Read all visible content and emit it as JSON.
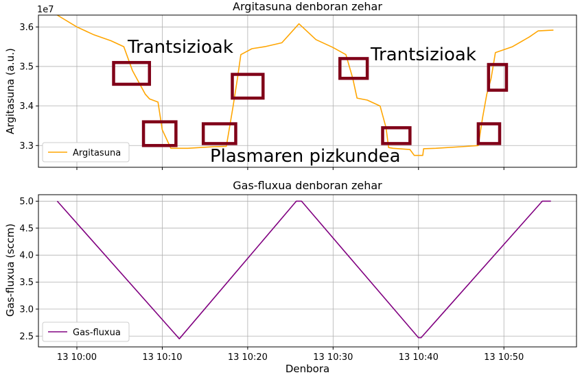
{
  "chart_data": [
    {
      "type": "line",
      "title": "Argitasuna denboran zehar",
      "ylabel": "Argitasuna (a.u.)",
      "xlabel": "",
      "offset_label": "1e7",
      "ylim": [
        3.245,
        3.63
      ],
      "yticks": [
        3.3,
        3.4,
        3.5,
        3.6
      ],
      "ytick_labels": [
        "3.3",
        "3.4",
        "3.5",
        "3.6"
      ],
      "grid": true,
      "legend": "lower-left",
      "series": [
        {
          "name": "Argitasuna",
          "color": "#FFA500",
          "x": [
            -2.3,
            0,
            2,
            4,
            5.5,
            6.5,
            8,
            8.5,
            9.5,
            10,
            11,
            13,
            16,
            17.5,
            18.3,
            18.8,
            19.2,
            20.5,
            22,
            24,
            26,
            28,
            30,
            31.5,
            32.3,
            32.8,
            34,
            35.5,
            36.2,
            36.5,
            37,
            39,
            39.5,
            40.5,
            40.6,
            42,
            45,
            47,
            47.5,
            48,
            48.5,
            49,
            51,
            53,
            54,
            55.8
          ],
          "y": [
            3.63,
            3.6,
            3.58,
            3.565,
            3.55,
            3.49,
            3.43,
            3.418,
            3.41,
            3.34,
            3.293,
            3.293,
            3.297,
            3.298,
            3.4,
            3.47,
            3.53,
            3.545,
            3.55,
            3.56,
            3.608,
            3.568,
            3.548,
            3.53,
            3.47,
            3.42,
            3.415,
            3.4,
            3.345,
            3.295,
            3.293,
            3.29,
            3.275,
            3.275,
            3.292,
            3.293,
            3.297,
            3.3,
            3.37,
            3.43,
            3.47,
            3.535,
            3.55,
            3.575,
            3.59,
            3.592
          ]
        }
      ],
      "annotations": [
        "Trantsizioak",
        "Trantsizioak",
        "Plasmaren pizkundea"
      ],
      "highlight_boxes_color": "#800018"
    },
    {
      "type": "line",
      "title": "Gas-fluxua denboran zehar",
      "ylabel": "Gas-fluxua (sccm)",
      "xlabel": "Denbora",
      "ylim": [
        2.3,
        5.12
      ],
      "yticks": [
        2.5,
        3.0,
        3.5,
        4.0,
        4.5,
        5.0
      ],
      "ytick_labels": [
        "2.5",
        "3.0",
        "3.5",
        "4.0",
        "4.5",
        "5.0"
      ],
      "xticks": [
        0,
        10,
        20,
        30,
        40,
        50
      ],
      "xtick_labels": [
        "13 10:00",
        "13 10:10",
        "13 10:20",
        "13 10:30",
        "13 10:40",
        "13 10:50"
      ],
      "xlim": [
        -4.5,
        58.5
      ],
      "grid": true,
      "legend": "lower-left",
      "series": [
        {
          "name": "Gas-fluxua",
          "color": "#800080",
          "x": [
            -2.3,
            12.0,
            25.7,
            26.3,
            40.0,
            40.3,
            54.5,
            55.5
          ],
          "y": [
            5.0,
            2.45,
            5.0,
            5.0,
            2.47,
            2.47,
            5.0,
            5.0
          ]
        }
      ]
    }
  ]
}
